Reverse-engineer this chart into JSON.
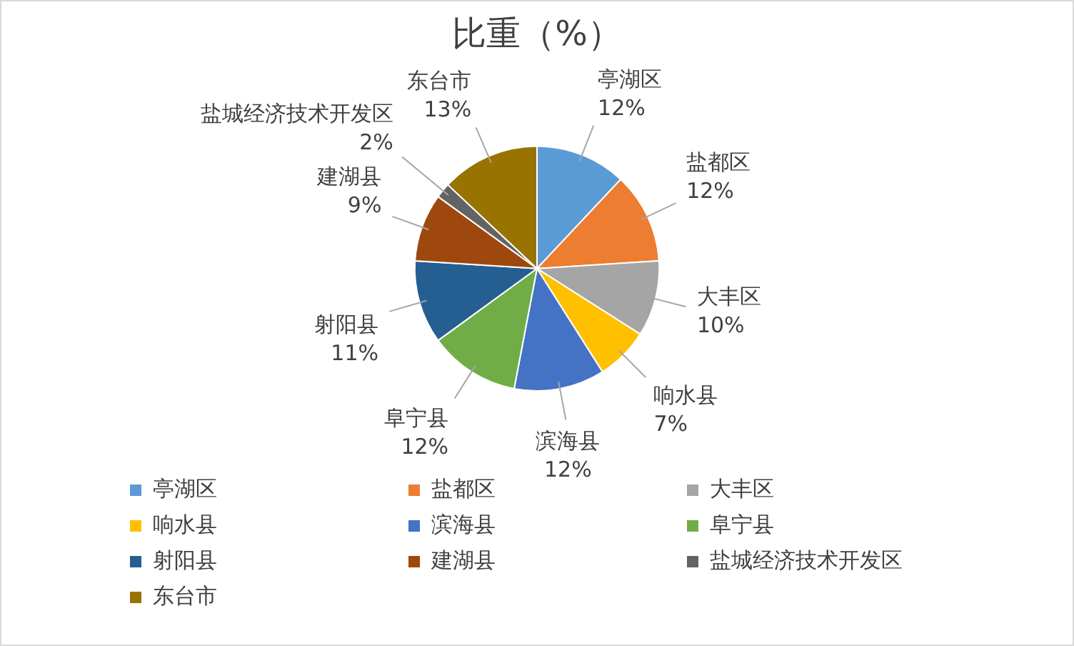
{
  "chart_data": {
    "type": "pie",
    "title": "比重（%）",
    "categories": [
      "亭湖区",
      "盐都区",
      "大丰区",
      "响水县",
      "滨海县",
      "阜宁县",
      "射阳县",
      "建湖县",
      "盐城经济技术开发区",
      "东台市"
    ],
    "values": [
      12,
      12,
      10,
      7,
      12,
      12,
      11,
      9,
      2,
      13
    ],
    "value_labels": [
      "12%",
      "12%",
      "10%",
      "7%",
      "12%",
      "12%",
      "11%",
      "9%",
      "2%",
      "13%"
    ],
    "colors": [
      "#5b9bd5",
      "#ed7d31",
      "#a5a5a5",
      "#ffc000",
      "#4472c4",
      "#70ad47",
      "#255e91",
      "#9e480e",
      "#636363",
      "#997300"
    ],
    "legend": "bottom"
  }
}
